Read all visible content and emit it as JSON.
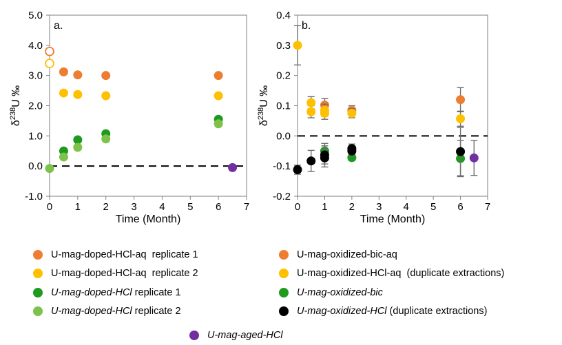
{
  "colors": {
    "orange": "#ED7D31",
    "yellow": "#FFC000",
    "dark_green": "#1E9A1E",
    "light_green": "#7DC24B",
    "black": "#000000",
    "purple": "#7030A0"
  },
  "chart_data": [
    {
      "type": "scatter",
      "panel_label": "a.",
      "xlabel": "Time (Month)",
      "ylabel": "δ238U ‰",
      "ylabel_parts": {
        "prefix": "δ",
        "sup": "238",
        "suffix": "U ‰"
      },
      "xlim": [
        0,
        7
      ],
      "ylim": [
        -1.0,
        5.0
      ],
      "x_ticks": [
        0,
        1,
        2,
        3,
        4,
        5,
        6,
        7
      ],
      "y_ticks": [
        "5.0",
        "4.0",
        "3.0",
        "2.0",
        "1.0",
        "0.0",
        "-1.0"
      ],
      "y_tick_values": [
        5,
        4,
        3,
        2,
        1,
        0,
        -1
      ],
      "reference_line_y": 0,
      "series": [
        {
          "key": "doped_aq_r1",
          "color": "orange",
          "points": [
            [
              0.5,
              3.12
            ],
            [
              1,
              3.02
            ],
            [
              2,
              3.0
            ],
            [
              6,
              3.0
            ]
          ],
          "hollow_points": [
            [
              0,
              3.8
            ]
          ]
        },
        {
          "key": "doped_aq_r2",
          "color": "yellow",
          "points": [
            [
              0.5,
              2.42
            ],
            [
              1,
              2.37
            ],
            [
              2,
              2.33
            ],
            [
              6,
              2.33
            ]
          ],
          "hollow_points": [
            [
              0,
              3.4
            ]
          ]
        },
        {
          "key": "doped_hcl_r1",
          "color": "dark_green",
          "points": [
            [
              0.5,
              0.5
            ],
            [
              1,
              0.87
            ],
            [
              2,
              1.07
            ],
            [
              6,
              1.55
            ]
          ]
        },
        {
          "key": "doped_hcl_r2",
          "color": "light_green",
          "points": [
            [
              0,
              -0.08
            ],
            [
              0.5,
              0.3
            ],
            [
              1,
              0.62
            ],
            [
              2,
              0.9
            ],
            [
              6,
              1.4
            ]
          ]
        },
        {
          "key": "aged_hcl",
          "color": "purple",
          "points": [
            [
              6.5,
              -0.05
            ]
          ]
        }
      ]
    },
    {
      "type": "scatter",
      "panel_label": "b.",
      "xlabel": "Time (Month)",
      "ylabel": "δ238U ‰",
      "ylabel_parts": {
        "prefix": "δ",
        "sup": "238",
        "suffix": "U ‰"
      },
      "xlim": [
        0,
        7
      ],
      "ylim": [
        -0.2,
        0.4
      ],
      "x_ticks": [
        0,
        1,
        2,
        3,
        4,
        5,
        6,
        7
      ],
      "y_ticks": [
        "0.4",
        "0.3",
        "0.2",
        "0.1",
        "0.0",
        "-0.1",
        "-0.2"
      ],
      "y_tick_values": [
        0.4,
        0.3,
        0.2,
        0.1,
        0.0,
        -0.1,
        -0.2
      ],
      "reference_line_y": 0,
      "series": [
        {
          "key": "oxidized_bic_aq",
          "color": "orange",
          "points": [
            [
              1,
              0.102,
              0.022
            ],
            [
              2,
              0.085,
              0.015
            ],
            [
              6,
              0.12,
              0.04
            ]
          ]
        },
        {
          "key": "oxidized_hcl_aq",
          "color": "yellow",
          "points": [
            [
              0,
              0.3,
              0.065
            ],
            [
              0.5,
              0.11,
              0.02
            ],
            [
              0.5,
              0.08,
              0.02
            ],
            [
              1,
              0.085,
              0.02
            ],
            [
              1,
              0.075,
              0.02
            ],
            [
              2,
              0.075,
              0.015
            ],
            [
              6,
              0.057,
              0.025
            ]
          ]
        },
        {
          "key": "oxidized_bic",
          "color": "dark_green",
          "points": [
            [
              1,
              -0.05,
              0.025
            ],
            [
              2,
              -0.072,
              0.01
            ],
            [
              6,
              -0.075,
              0.06
            ]
          ]
        },
        {
          "key": "oxidized_hcl",
          "color": "black",
          "points": [
            [
              0,
              -0.112,
              0.015
            ],
            [
              0.5,
              -0.083,
              0.035
            ],
            [
              1,
              -0.063,
              0.03
            ],
            [
              1,
              -0.073,
              0.03
            ],
            [
              2,
              -0.042,
              0.015
            ],
            [
              2,
              -0.05,
              0.015
            ],
            [
              6,
              -0.052,
              0.08
            ]
          ]
        },
        {
          "key": "aged_hcl",
          "color": "purple",
          "points": [
            [
              6.5,
              -0.073,
              0.058
            ]
          ]
        }
      ]
    }
  ],
  "legend": [
    {
      "color": "orange",
      "text": "U-mag-doped-HCl-aq  replicate 1",
      "italic": false
    },
    {
      "color": "orange",
      "text": "U-mag-oxidized-bic-aq",
      "italic": false
    },
    {
      "color": "yellow",
      "text": "U-mag-doped-HCl-aq  replicate 2",
      "italic": false
    },
    {
      "color": "yellow",
      "text": "U-mag-oxidized-HCl-aq  (duplicate extractions)",
      "italic": false
    },
    {
      "color": "dark_green",
      "italic_text": "U-mag-doped-HCl",
      "text": " replicate 1"
    },
    {
      "color": "dark_green",
      "italic_text": "U-mag-oxidized-bic",
      "text": ""
    },
    {
      "color": "light_green",
      "italic_text": "U-mag-doped-HCl",
      "text": " replicate 2"
    },
    {
      "color": "black",
      "italic_text": "U-mag-oxidized-HCl",
      "text": " (duplicate extractions)"
    },
    {
      "color": "purple",
      "italic_text": "U-mag-aged-HCl",
      "text": ""
    }
  ]
}
